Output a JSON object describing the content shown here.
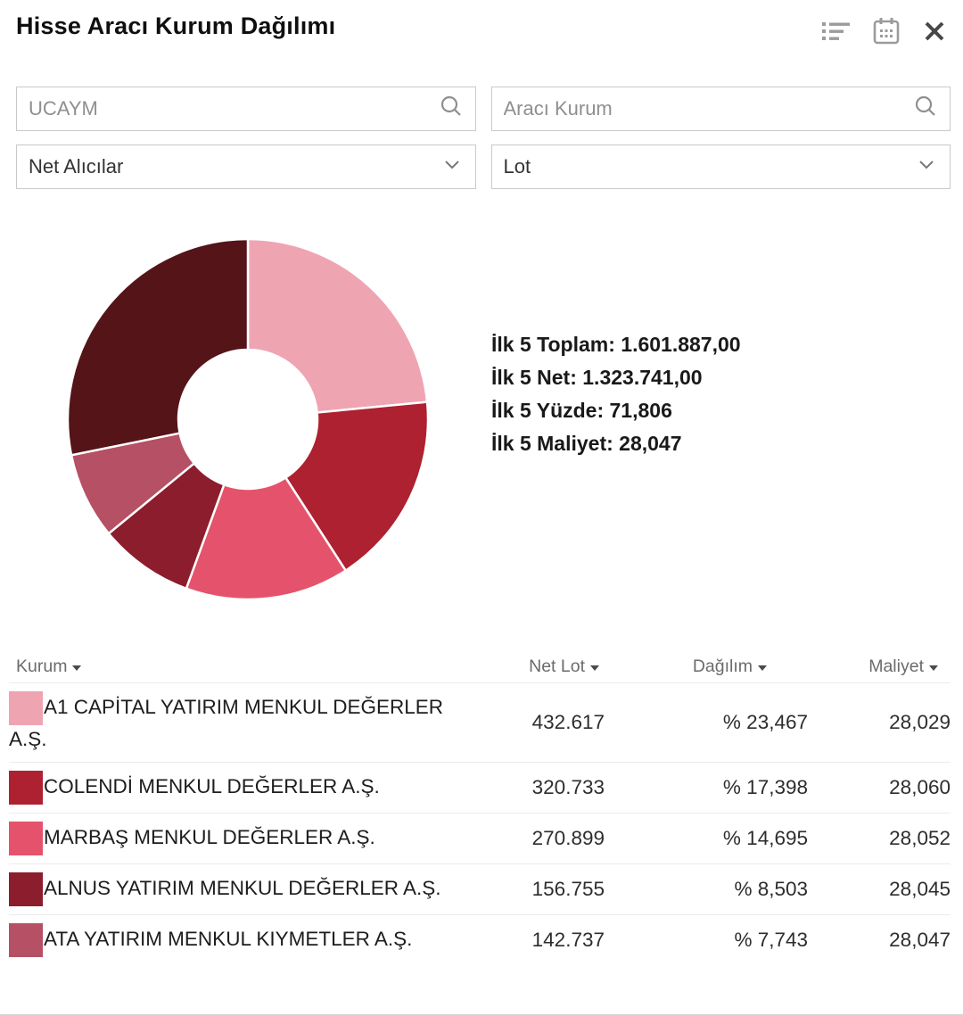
{
  "header": {
    "title": "Hisse Aracı Kurum Dağılımı",
    "icons": [
      {
        "name": "list-view-icon"
      },
      {
        "name": "calendar-icon"
      },
      {
        "name": "close-icon"
      }
    ]
  },
  "filters": {
    "symbol_search": {
      "value": "UCAYM",
      "icon": "search-icon"
    },
    "broker_search": {
      "placeholder": "Aracı Kurum",
      "icon": "search-icon"
    },
    "side_select": {
      "value": "Net Alıcılar",
      "icon": "chevron-down-icon"
    },
    "unit_select": {
      "value": "Lot",
      "icon": "chevron-down-icon"
    }
  },
  "summary": {
    "lines": [
      {
        "label": "İlk 5 Toplam:",
        "value": "1.601.887,00"
      },
      {
        "label": "İlk 5 Net:",
        "value": "1.323.741,00"
      },
      {
        "label": "İlk 5 Yüzde:",
        "value": "71,806"
      },
      {
        "label": "İlk 5 Maliyet:",
        "value": "28,047"
      }
    ]
  },
  "chart_data": {
    "type": "pie",
    "subtype": "donut",
    "unit": "Lot",
    "start_angle_deg": 0,
    "direction": "clockwise",
    "inner_radius_ratio": 0.386,
    "segments": [
      {
        "name": "A1 CAPİTAL YATIRIM MENKUL DEĞERLER A.Ş.",
        "net_lot": "432.617",
        "pct": 23.467,
        "maliyet": "28,029",
        "color": "#efa4b2"
      },
      {
        "name": "COLENDİ MENKUL DEĞERLER A.Ş.",
        "net_lot": "320.733",
        "pct": 17.398,
        "maliyet": "28,060",
        "color": "#ad2130"
      },
      {
        "name": "MARBAŞ MENKUL DEĞERLER A.Ş.",
        "net_lot": "270.899",
        "pct": 14.695,
        "maliyet": "28,052",
        "color": "#e4536b"
      },
      {
        "name": "ALNUS YATIRIM MENKUL DEĞERLER A.Ş.",
        "net_lot": "156.755",
        "pct": 8.503,
        "maliyet": "28,045",
        "color": "#8c1d2c"
      },
      {
        "name": "ATA YATIRIM MENKUL KIYMETLER A.Ş.",
        "net_lot": "142.737",
        "pct": 7.743,
        "maliyet": "28,047",
        "color": "#b65064"
      },
      {
        "name": "",
        "pct": 28.194,
        "color": "#541418"
      }
    ]
  },
  "table": {
    "headers": [
      {
        "label": "Kurum",
        "sortable": true
      },
      {
        "label": "Net Lot",
        "sortable": true
      },
      {
        "label": "Dağılım",
        "sortable": true
      },
      {
        "label": "Maliyet",
        "sortable": true
      }
    ],
    "rows": [
      {
        "kurum": "A1 CAPİTAL YATIRIM MENKUL DEĞERLER A.Ş.",
        "net_lot": "432.617",
        "dagilim": "% 23,467",
        "maliyet": "28,029",
        "color": "#efa4b2"
      },
      {
        "kurum": "COLENDİ MENKUL DEĞERLER A.Ş.",
        "net_lot": "320.733",
        "dagilim": "% 17,398",
        "maliyet": "28,060",
        "color": "#ad2130"
      },
      {
        "kurum": "MARBAŞ MENKUL DEĞERLER A.Ş.",
        "net_lot": "270.899",
        "dagilim": "% 14,695",
        "maliyet": "28,052",
        "color": "#e4536b"
      },
      {
        "kurum": "ALNUS YATIRIM MENKUL DEĞERLER A.Ş.",
        "net_lot": "156.755",
        "dagilim": "% 8,503",
        "maliyet": "28,045",
        "color": "#8c1d2c"
      },
      {
        "kurum": "ATA YATIRIM MENKUL KIYMETLER A.Ş.",
        "net_lot": "142.737",
        "dagilim": "% 7,743",
        "maliyet": "28,047",
        "color": "#b65064"
      }
    ]
  }
}
